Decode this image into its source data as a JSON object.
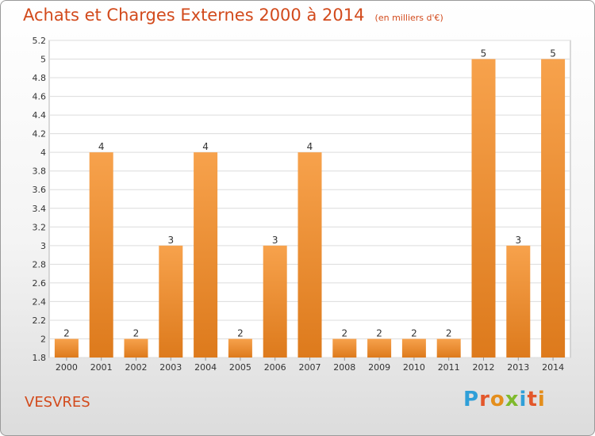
{
  "header": {
    "title": "Achats et Charges Externes 2000 à 2014",
    "unit": "(en milliers d'€)"
  },
  "footer": {
    "commune": "VESVRES",
    "brand": "Proxiti"
  },
  "colors": {
    "accent_text": "#d24a1c",
    "bar_light": "#f7a24c",
    "bar_dark": "#dd7a1c",
    "brand_letters": [
      "#2f9fd8",
      "#e3572b",
      "#e48e1c",
      "#7fba2c",
      "#2f9fd8",
      "#e3572b",
      "#e48e1c"
    ]
  },
  "chart_data": {
    "type": "bar",
    "title": "Achats et Charges Externes 2000 à 2014",
    "subtitle": "(en milliers d'€)",
    "categories": [
      "2000",
      "2001",
      "2002",
      "2003",
      "2004",
      "2005",
      "2006",
      "2007",
      "2008",
      "2009",
      "2010",
      "2011",
      "2012",
      "2013",
      "2014"
    ],
    "values": [
      2,
      4,
      2,
      3,
      4,
      2,
      3,
      4,
      2,
      2,
      2,
      2,
      5,
      3,
      5
    ],
    "bar_labels": [
      "2",
      "4",
      "2",
      "3",
      "4",
      "2",
      "3",
      "4",
      "2",
      "2",
      "2",
      "2",
      "5",
      "3",
      "5"
    ],
    "bar_label_positions": [
      2,
      4,
      2,
      3,
      4,
      2,
      3,
      4,
      2,
      2,
      2,
      2,
      5,
      3,
      5
    ],
    "y_ticks": [
      "1.8",
      "2",
      "2.2",
      "2.4",
      "2.6",
      "2.8",
      "3",
      "3.2",
      "3.4",
      "3.6",
      "3.8",
      "4",
      "4.2",
      "4.4",
      "4.6",
      "4.8",
      "5",
      "5.2"
    ],
    "y_tick_positions": [
      1.8,
      2,
      2.2,
      2.4,
      2.6,
      2.8,
      3,
      3.2,
      3.4,
      3.6,
      3.8,
      4,
      4.2,
      4.4,
      4.6,
      4.8,
      5,
      5.2
    ],
    "ylim": [
      1.8,
      5.2
    ],
    "grid": true,
    "xlabel": "",
    "ylabel": ""
  }
}
